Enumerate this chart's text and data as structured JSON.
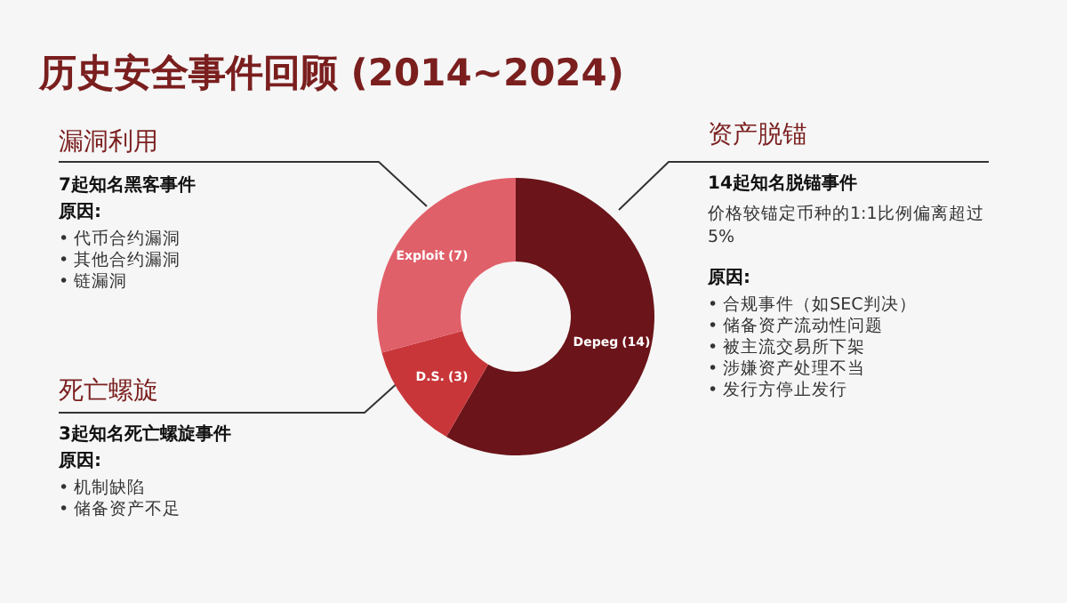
{
  "chart_data": {
    "type": "donut",
    "title": "历史安全事件回顾 (2014~2024)",
    "categories": [
      "Depeg",
      "D.S.",
      "Exploit"
    ],
    "values": [
      14,
      3,
      7
    ],
    "colors": [
      "#6b1419",
      "#c9363a",
      "#e0606a"
    ],
    "value_labels": [
      "(14)",
      "(3)",
      "(7)"
    ],
    "annotations": [
      "漏洞利用",
      "7起知名黑客事件",
      "原因:",
      "• 代币合约漏洞",
      "• 其他合约漏洞",
      "• 链漏洞",
      "死亡螺旋",
      "3起知名死亡螺旋事件",
      "原因:",
      "• 机制缺陷",
      "• 储备资产不足",
      "资产脱锚",
      "14起知名脱锚事件",
      "价格较锚定币种的1:1比例偏离超过",
      "5%",
      "原因:",
      "• 合规事件（如SEC判决）",
      "• 储备资产流动性问题",
      "• 被主流交易所下架",
      "• 涉嫌资产处理不当",
      "• 发行方停止发行"
    ]
  }
}
